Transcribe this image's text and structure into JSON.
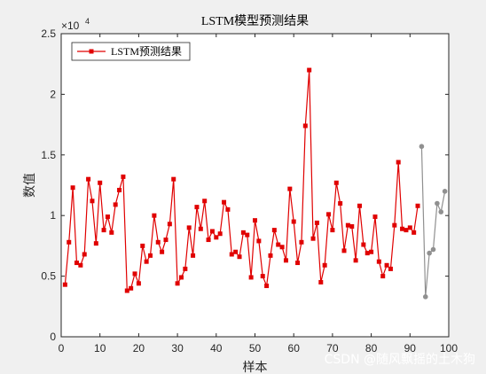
{
  "chart_data": {
    "type": "line",
    "title": "LSTM模型预测结果",
    "xlabel": "样本",
    "ylabel": "数值",
    "y_exponent_label": "×10",
    "y_exponent_power": "4",
    "xlim": [
      0,
      100
    ],
    "ylim": [
      0,
      2.5
    ],
    "x_ticks": [
      0,
      10,
      20,
      30,
      40,
      50,
      60,
      70,
      80,
      90,
      100
    ],
    "y_ticks": [
      0,
      0.5,
      1,
      1.5,
      2,
      2.5
    ],
    "x_tick_labels": [
      "0",
      "10",
      "20",
      "30",
      "40",
      "50",
      "60",
      "70",
      "80",
      "90",
      "100"
    ],
    "y_tick_labels": [
      "0",
      "0.5",
      "1",
      "1.5",
      "2",
      "2.5"
    ],
    "grid": false,
    "legend_position": "top-left",
    "series": [
      {
        "name": "LSTM预测结果",
        "color": "#e00000",
        "marker": "square",
        "x": [
          1,
          2,
          3,
          4,
          5,
          6,
          7,
          8,
          9,
          10,
          11,
          12,
          13,
          14,
          15,
          16,
          17,
          18,
          19,
          20,
          21,
          22,
          23,
          24,
          25,
          26,
          27,
          28,
          29,
          30,
          31,
          32,
          33,
          34,
          35,
          36,
          37,
          38,
          39,
          40,
          41,
          42,
          43,
          44,
          45,
          46,
          47,
          48,
          49,
          50,
          51,
          52,
          53,
          54,
          55,
          56,
          57,
          58,
          59,
          60,
          61,
          62,
          63,
          64,
          65,
          66,
          67,
          68,
          69,
          70,
          71,
          72,
          73,
          74,
          75,
          76,
          77,
          78,
          79,
          80,
          81,
          82,
          83,
          84,
          85,
          86,
          87,
          88,
          89,
          90,
          91,
          92
        ],
        "values": [
          0.43,
          0.78,
          1.23,
          0.61,
          0.59,
          0.68,
          1.3,
          1.12,
          0.77,
          1.27,
          0.88,
          0.99,
          0.86,
          1.09,
          1.21,
          1.32,
          0.38,
          0.4,
          0.52,
          0.44,
          0.75,
          0.62,
          0.67,
          1.0,
          0.78,
          0.7,
          0.8,
          0.93,
          1.3,
          0.44,
          0.49,
          0.56,
          0.9,
          0.67,
          1.07,
          0.89,
          1.12,
          0.8,
          0.87,
          0.82,
          0.85,
          1.11,
          1.05,
          0.68,
          0.7,
          0.66,
          0.86,
          0.84,
          0.49,
          0.96,
          0.79,
          0.5,
          0.42,
          0.67,
          0.88,
          0.76,
          0.74,
          0.63,
          1.22,
          0.95,
          0.61,
          0.78,
          1.74,
          2.2,
          0.81,
          0.94,
          0.45,
          0.59,
          1.01,
          0.88,
          1.27,
          1.1,
          0.71,
          0.92,
          0.91,
          0.63,
          1.08,
          0.76,
          0.69,
          0.7,
          0.99,
          0.62,
          0.5,
          0.59,
          0.56,
          0.92,
          1.44,
          0.89,
          0.88,
          0.9,
          0.86,
          1.08
        ]
      },
      {
        "name": "",
        "color": "#909090",
        "marker": "circle",
        "x": [
          93,
          94,
          95,
          96,
          97,
          98,
          99
        ],
        "values": [
          1.57,
          0.33,
          0.69,
          0.72,
          1.1,
          1.03,
          1.2
        ]
      }
    ]
  },
  "watermark": "CSDN @随风飘摇的土木狗"
}
